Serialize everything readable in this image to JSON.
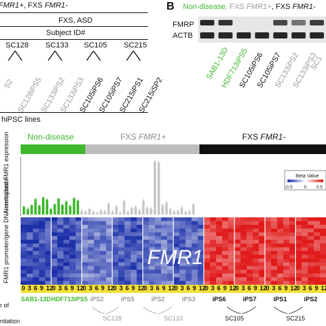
{
  "panel_a": {
    "top_line_prefix": "FMR1+",
    "top_line_sep": ", FXS ",
    "top_line_gene": "FMR1-",
    "group_label": "FXS, ASD",
    "subject_label": "Subject ID#",
    "subjects": [
      "SC128",
      "SC133",
      "SC105",
      "SC215"
    ],
    "lines": [
      {
        "name": "S2",
        "color": "#9a9a9a"
      },
      {
        "name": "SC128iPS5",
        "color": "#9a9a9a"
      },
      {
        "name": "SC133iPS2",
        "color": "#9a9a9a"
      },
      {
        "name": "SC133iPS3",
        "color": "#9a9a9a"
      },
      {
        "name": "SC105iPS6",
        "color": "#111111"
      },
      {
        "name": "SC105iPS7",
        "color": "#111111"
      },
      {
        "name": "SC215iPS1",
        "color": "#111111"
      },
      {
        "name": "SC215iSP2",
        "color": "#111111"
      }
    ],
    "footer": "hiPSC lines"
  },
  "panel_b": {
    "letter": "B",
    "nd": "Non-disease",
    "fxs_plus_prefix": ", FXS ",
    "fxs_plus_gene": "FMR1+",
    "fxs_minus_prefix": ", FXS ",
    "fxs_minus_gene": "FMR1-",
    "bands": [
      "FMRP",
      "ACTB"
    ],
    "lines": [
      {
        "name": "SAB1-13D",
        "color": "#3fb82e"
      },
      {
        "name": "HDF713iPS5",
        "color": "#3fb82e"
      },
      {
        "name": "SC105iPS6",
        "color": "#111111"
      },
      {
        "name": "SC105iPS7",
        "color": "#111111"
      },
      {
        "name": "SC133iPS2",
        "color": "#9a9a9a"
      },
      {
        "name": "SC133iPS3",
        "color": "#9a9a9a"
      },
      {
        "name": "SC1",
        "color": "#9a9a9a"
      }
    ]
  },
  "panel_c": {
    "groups": [
      {
        "label": "Non-disease",
        "gene": "",
        "color": "#3fb82e",
        "text_color": "#3fb82e"
      },
      {
        "label": "FXS ",
        "gene": "FMR1+",
        "color": "#bdbdbd",
        "text_color": "#8a8a8a"
      },
      {
        "label": "FXS ",
        "gene": "FMR1-",
        "color": "#111111",
        "text_color": "#111111"
      }
    ],
    "ylabel_expression": "Normalized FMR1 expression",
    "ylabel_methylation": "FMR1 promoter/gene DNA methylation",
    "heatmap_label": "FMR1",
    "legend_title": "Beta Value",
    "legend_ticks": [
      "-0.5",
      "0",
      "0.5"
    ],
    "days": [
      "0",
      "3",
      "6",
      "9",
      "12"
    ],
    "lines": [
      {
        "name": "SAB1-13D",
        "subject": "",
        "color": "#3fb82e"
      },
      {
        "name": "HDF713iPS5",
        "subject": "",
        "color": "#3fb82e"
      },
      {
        "name": "iPS2",
        "subject": "SC128",
        "color": "#9a9a9a"
      },
      {
        "name": "iPS5",
        "subject": "",
        "color": "#9a9a9a"
      },
      {
        "name": "iPS2",
        "subject": "SC133",
        "color": "#9a9a9a"
      },
      {
        "name": "iPS3",
        "subject": "",
        "color": "#9a9a9a"
      },
      {
        "name": "iPS6",
        "subject": "SC105",
        "color": "#111111"
      },
      {
        "name": "iPS7",
        "subject": "",
        "color": "#111111"
      },
      {
        "name": "iPS1",
        "subject": "SC215",
        "color": "#111111"
      },
      {
        "name": "iPS2",
        "subject": "",
        "color": "#111111"
      }
    ],
    "left_fragments": [
      "r of",
      "ntiation"
    ]
  },
  "chart_data": {
    "type": "bar",
    "ylabel": "Normalized FMR1 expression",
    "series": [
      {
        "name": "Non-disease",
        "values": [
          2.6,
          1.9,
          3.1,
          5.1,
          3.0,
          5.6,
          4.9,
          1.9,
          3.4,
          5.2,
          3.2,
          4.3,
          2.9,
          5.4,
          4.6
        ]
      },
      {
        "name": "FXS FMR1+",
        "values": [
          1.2,
          0.9,
          1.8,
          0.9,
          0.5,
          1.4,
          1.1,
          3.5,
          1.0,
          2.6,
          0.6,
          4.4,
          0.9,
          2.1,
          2.5,
          1.4,
          4.5,
          2.2,
          1.9,
          17.4,
          17.0,
          3.1,
          3.9,
          1.7,
          1.0,
          1.2,
          2.3,
          0.9,
          1.0,
          3.2
        ]
      },
      {
        "name": "FXS FMR1-",
        "values": []
      }
    ]
  },
  "heatmap": {
    "columns_per_line": 5,
    "rows": 18,
    "color_low": "#1a2fa8",
    "color_high": "#e01b1b",
    "scale": [
      -0.5,
      0,
      0.5
    ],
    "line_levels": [
      -0.42,
      -0.4,
      -0.3,
      -0.38,
      -0.32,
      -0.36,
      0.42,
      0.44,
      0.43,
      0.45
    ]
  }
}
